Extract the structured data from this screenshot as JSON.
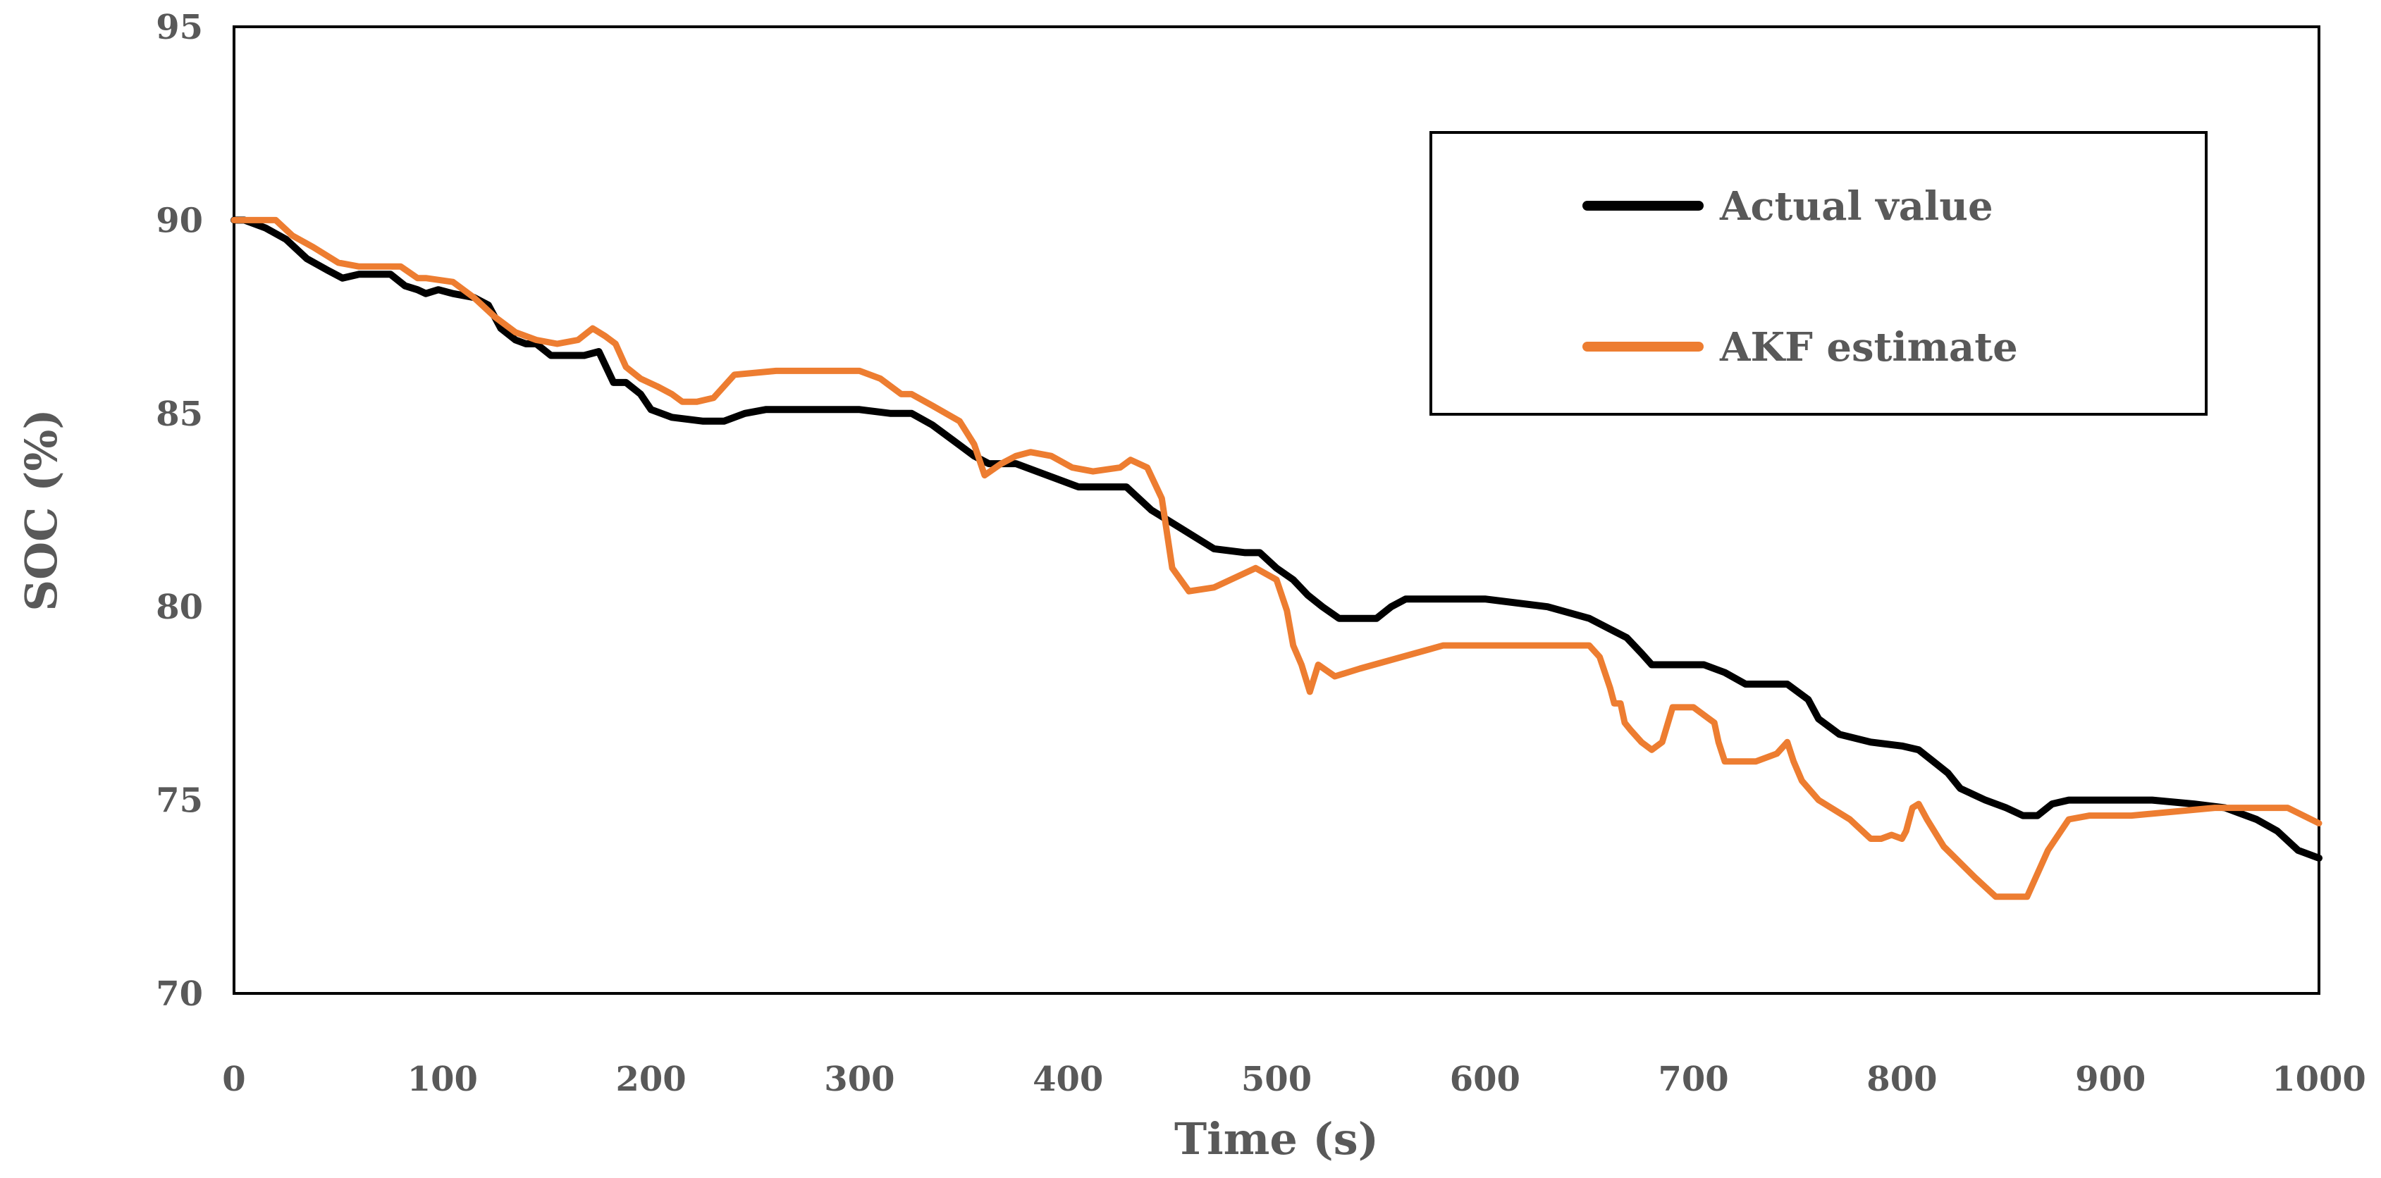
{
  "chart_data": {
    "type": "line",
    "title": "",
    "xlabel": "Time (s)",
    "ylabel": "SOC (%)",
    "xlim": [
      0,
      1000
    ],
    "ylim": [
      70,
      95
    ],
    "xticks": [
      "0",
      "100",
      "200",
      "300",
      "400",
      "500",
      "600",
      "700",
      "800",
      "900",
      "1000"
    ],
    "yticks": [
      "70",
      "75",
      "80",
      "85",
      "90",
      "95"
    ],
    "legend_position": "top-right",
    "grid": false,
    "series": [
      {
        "name": "Actual value",
        "color": "#000000",
        "x": [
          0,
          5,
          15,
          25,
          35,
          45,
          52,
          60,
          65,
          75,
          82,
          88,
          92,
          98,
          105,
          115,
          122,
          128,
          135,
          140,
          145,
          152,
          160,
          168,
          175,
          182,
          188,
          195,
          200,
          210,
          225,
          235,
          245,
          255,
          270,
          300,
          315,
          325,
          335,
          345,
          355,
          362,
          375,
          385,
          395,
          405,
          418,
          428,
          440,
          455,
          470,
          485,
          492,
          500,
          508,
          515,
          522,
          530,
          540,
          548,
          555,
          562,
          580,
          600,
          630,
          650,
          668,
          675,
          680,
          690,
          705,
          715,
          725,
          745,
          755,
          760,
          765,
          770,
          785,
          800,
          808,
          815,
          822,
          828,
          840,
          850,
          858,
          865,
          872,
          880,
          900,
          910,
          920,
          940,
          955,
          970,
          980,
          990,
          1000
        ],
        "y": [
          90.0,
          90.0,
          89.8,
          89.5,
          89.0,
          88.7,
          88.5,
          88.6,
          88.6,
          88.6,
          88.3,
          88.2,
          88.1,
          88.2,
          88.1,
          88.0,
          87.8,
          87.2,
          86.9,
          86.8,
          86.8,
          86.5,
          86.5,
          86.5,
          86.6,
          85.8,
          85.8,
          85.5,
          85.1,
          84.9,
          84.8,
          84.8,
          85.0,
          85.1,
          85.1,
          85.1,
          85.0,
          85.0,
          84.7,
          84.3,
          83.9,
          83.7,
          83.7,
          83.5,
          83.3,
          83.1,
          83.1,
          83.1,
          82.5,
          82.0,
          81.5,
          81.4,
          81.4,
          81.0,
          80.7,
          80.3,
          80.0,
          79.7,
          79.7,
          79.7,
          80.0,
          80.2,
          80.2,
          80.2,
          80.0,
          79.7,
          79.2,
          78.8,
          78.5,
          78.5,
          78.5,
          78.3,
          78.0,
          78.0,
          77.6,
          77.1,
          76.9,
          76.7,
          76.5,
          76.4,
          76.3,
          76.0,
          75.7,
          75.3,
          75.0,
          74.8,
          74.6,
          74.6,
          74.9,
          75.0,
          75.0,
          75.0,
          75.0,
          74.9,
          74.8,
          74.5,
          74.2,
          73.7,
          73.5
        ]
      },
      {
        "name": "AKF estimate",
        "color": "#ED7D31",
        "x": [
          0,
          8,
          20,
          28,
          38,
          50,
          60,
          70,
          80,
          88,
          92,
          105,
          115,
          125,
          135,
          145,
          155,
          165,
          172,
          178,
          183,
          188,
          195,
          203,
          210,
          215,
          222,
          230,
          240,
          260,
          300,
          310,
          320,
          325,
          335,
          348,
          355,
          360,
          368,
          375,
          382,
          392,
          402,
          412,
          425,
          430,
          438,
          445,
          450,
          458,
          470,
          490,
          500,
          505,
          508,
          512,
          516,
          520,
          528,
          540,
          580,
          600,
          650,
          655,
          660,
          662,
          665,
          667,
          670,
          675,
          680,
          685,
          690,
          700,
          710,
          712,
          715,
          720,
          730,
          740,
          745,
          748,
          752,
          760,
          775,
          785,
          790,
          795,
          800,
          802,
          805,
          808,
          812,
          820,
          835,
          845,
          850,
          860,
          870,
          880,
          890,
          910,
          930,
          950,
          970,
          985,
          1000
        ],
        "y": [
          90.0,
          90.0,
          90.0,
          89.6,
          89.3,
          88.9,
          88.8,
          88.8,
          88.8,
          88.5,
          88.5,
          88.4,
          88.0,
          87.5,
          87.1,
          86.9,
          86.8,
          86.9,
          87.2,
          87.0,
          86.8,
          86.2,
          85.9,
          85.7,
          85.5,
          85.3,
          85.3,
          85.4,
          86.0,
          86.1,
          86.1,
          85.9,
          85.5,
          85.5,
          85.2,
          84.8,
          84.2,
          83.4,
          83.7,
          83.9,
          84.0,
          83.9,
          83.6,
          83.5,
          83.6,
          83.8,
          83.6,
          82.8,
          81.0,
          80.4,
          80.5,
          81.0,
          80.7,
          79.9,
          79.0,
          78.5,
          77.8,
          78.5,
          78.2,
          78.4,
          79.0,
          79.0,
          79.0,
          78.7,
          77.9,
          77.5,
          77.5,
          77.0,
          76.8,
          76.5,
          76.3,
          76.5,
          77.4,
          77.4,
          77.0,
          76.5,
          76.0,
          76.0,
          76.0,
          76.2,
          76.5,
          76.0,
          75.5,
          75.0,
          74.5,
          74.0,
          74.0,
          74.1,
          74.0,
          74.2,
          74.8,
          74.9,
          74.5,
          73.8,
          73.0,
          72.5,
          72.5,
          72.5,
          73.7,
          74.5,
          74.6,
          74.6,
          74.7,
          74.8,
          74.8,
          74.8,
          74.4
        ]
      }
    ]
  }
}
